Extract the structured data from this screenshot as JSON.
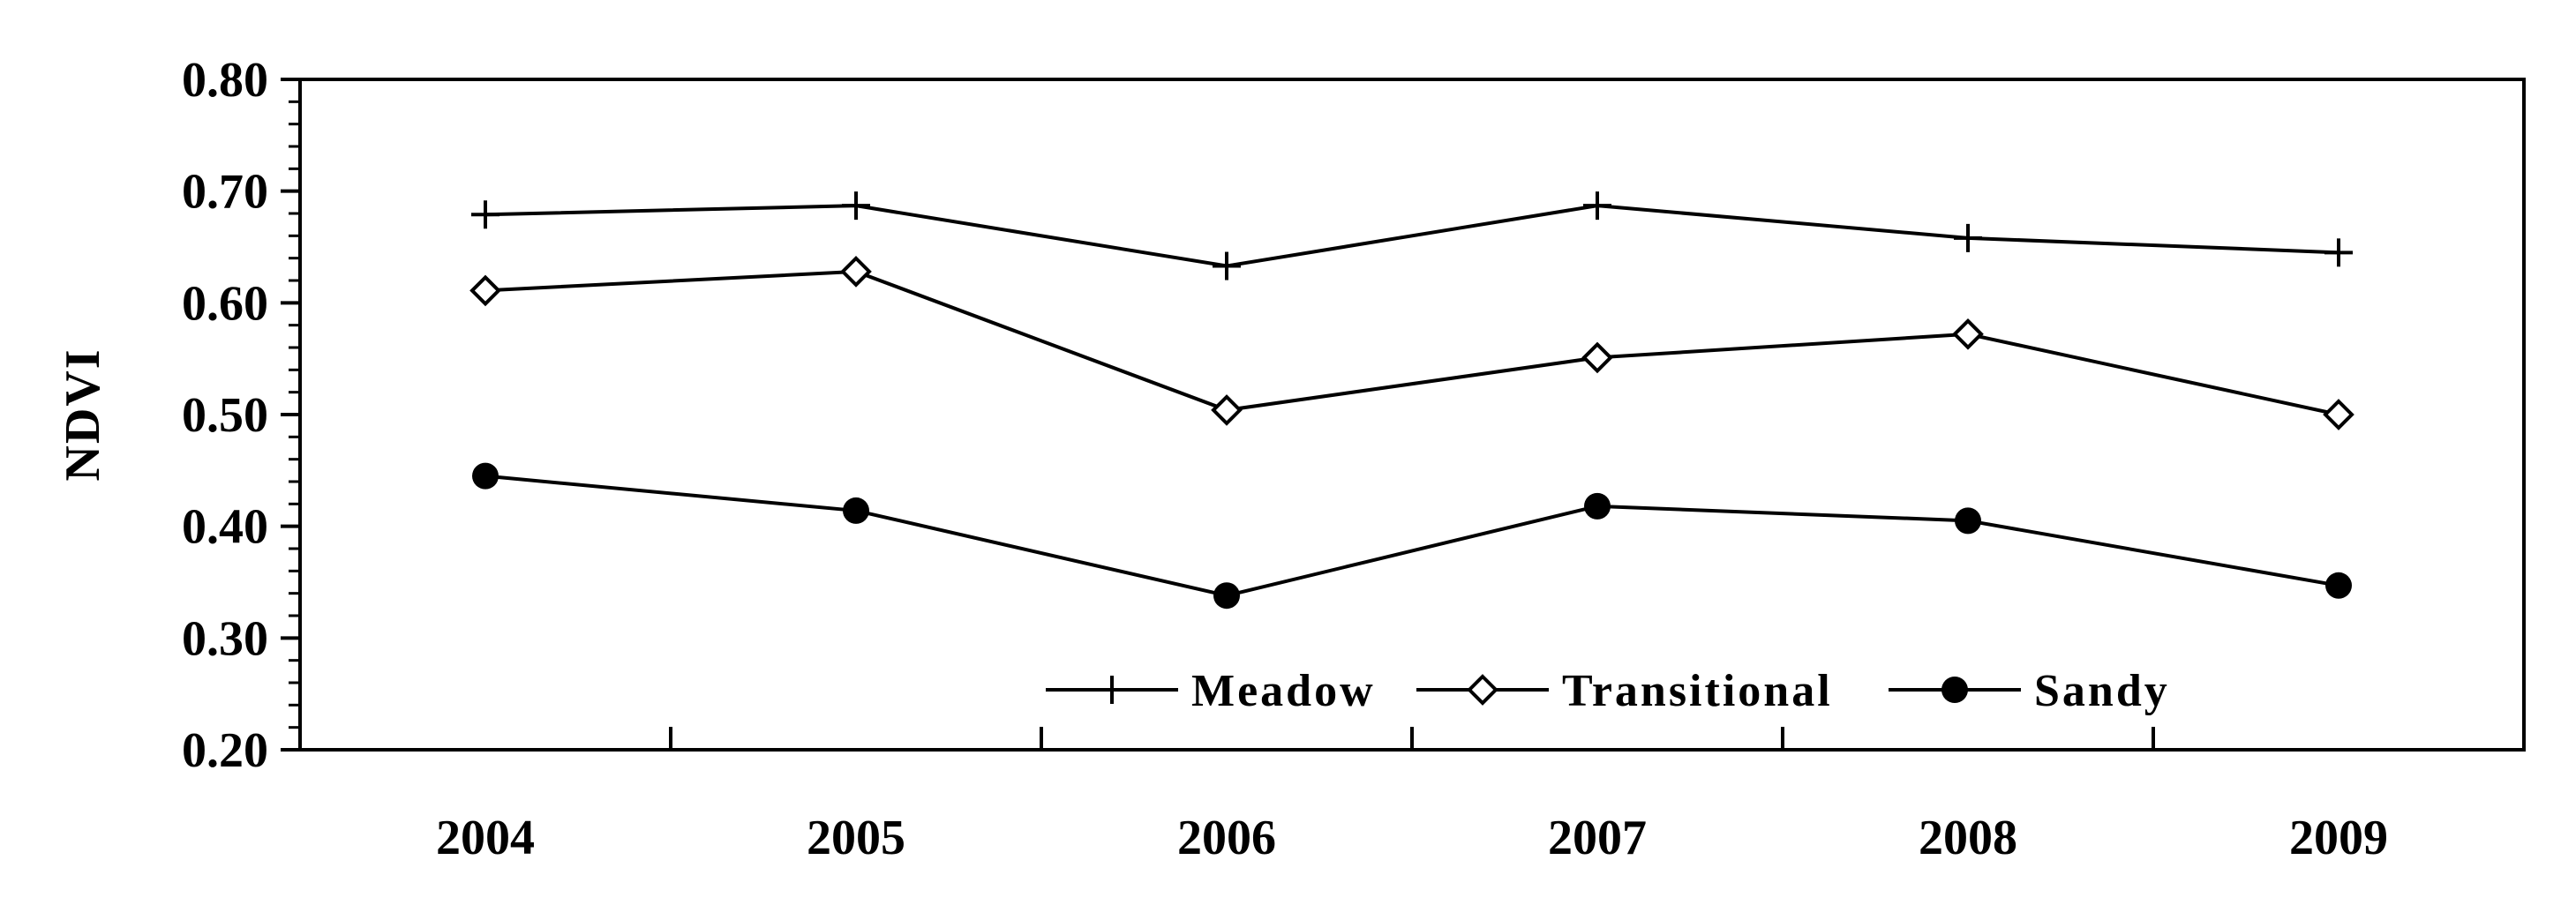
{
  "chart_data": {
    "type": "line",
    "title": "",
    "xlabel": "",
    "ylabel": "NDVI",
    "categories": [
      "2004",
      "2005",
      "2006",
      "2007",
      "2008",
      "2009"
    ],
    "y_tick_labels": [
      "0.20",
      "0.30",
      "0.40",
      "0.50",
      "0.60",
      "0.70",
      "0.80"
    ],
    "ylim": [
      0.2,
      0.8
    ],
    "grid": false,
    "legend_position": "bottom-center inside",
    "series": [
      {
        "name": "Meadow",
        "marker": "plus",
        "values": [
          0.679,
          0.687,
          0.633,
          0.687,
          0.658,
          0.645
        ]
      },
      {
        "name": "Transitional",
        "marker": "open-diamond",
        "values": [
          0.611,
          0.628,
          0.504,
          0.551,
          0.572,
          0.5
        ]
      },
      {
        "name": "Sandy",
        "marker": "filled-circle",
        "values": [
          0.445,
          0.414,
          0.338,
          0.418,
          0.405,
          0.347
        ]
      }
    ],
    "line_color": "#000000"
  }
}
